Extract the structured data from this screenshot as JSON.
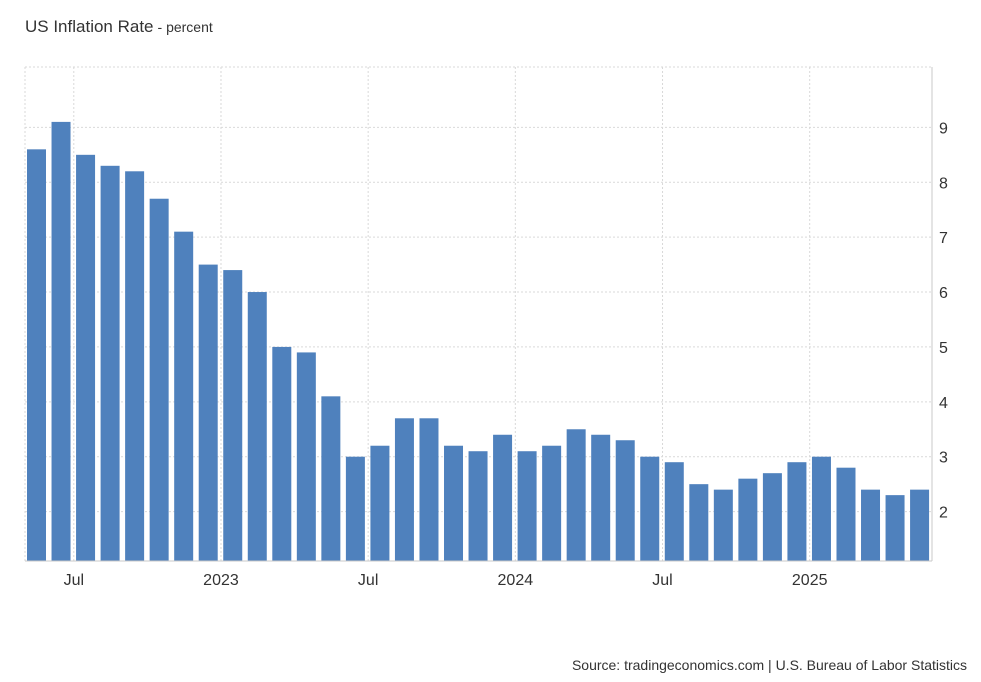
{
  "header": {
    "title": "US Inflation Rate",
    "subtitle": "- percent"
  },
  "footer": {
    "source": "Source: tradingeconomics.com | U.S. Bureau of Labor Statistics"
  },
  "chart_data": {
    "type": "bar",
    "title": "US Inflation Rate",
    "ylabel": "percent",
    "ylim": [
      1.1,
      10.1
    ],
    "yticks": [
      2,
      3,
      4,
      5,
      6,
      7,
      8,
      9
    ],
    "y_axis_position": "right",
    "grid": true,
    "color": "#4f81bd",
    "categories": [
      "2022-05",
      "2022-06",
      "2022-07",
      "2022-08",
      "2022-09",
      "2022-10",
      "2022-11",
      "2022-12",
      "2023-01",
      "2023-02",
      "2023-03",
      "2023-04",
      "2023-05",
      "2023-06",
      "2023-07",
      "2023-08",
      "2023-09",
      "2023-10",
      "2023-11",
      "2023-12",
      "2024-01",
      "2024-02",
      "2024-03",
      "2024-04",
      "2024-05",
      "2024-06",
      "2024-07",
      "2024-08",
      "2024-09",
      "2024-10",
      "2024-11",
      "2024-12",
      "2025-01",
      "2025-02",
      "2025-03",
      "2025-04",
      "2025-05"
    ],
    "values": [
      8.6,
      9.1,
      8.5,
      8.3,
      8.2,
      7.7,
      7.1,
      6.5,
      6.4,
      6.0,
      5.0,
      4.9,
      4.1,
      3.0,
      3.2,
      3.7,
      3.7,
      3.2,
      3.1,
      3.4,
      3.1,
      3.2,
      3.5,
      3.4,
      3.3,
      3.0,
      2.9,
      2.5,
      2.4,
      2.6,
      2.7,
      2.9,
      3.0,
      2.8,
      2.4,
      2.3,
      2.4
    ],
    "xtick_labels": [
      {
        "label": "Jul",
        "category": "2022-07"
      },
      {
        "label": "2023",
        "category": "2023-01"
      },
      {
        "label": "Jul",
        "category": "2023-07"
      },
      {
        "label": "2024",
        "category": "2024-01"
      },
      {
        "label": "Jul",
        "category": "2024-07"
      },
      {
        "label": "2025",
        "category": "2025-01"
      }
    ]
  }
}
